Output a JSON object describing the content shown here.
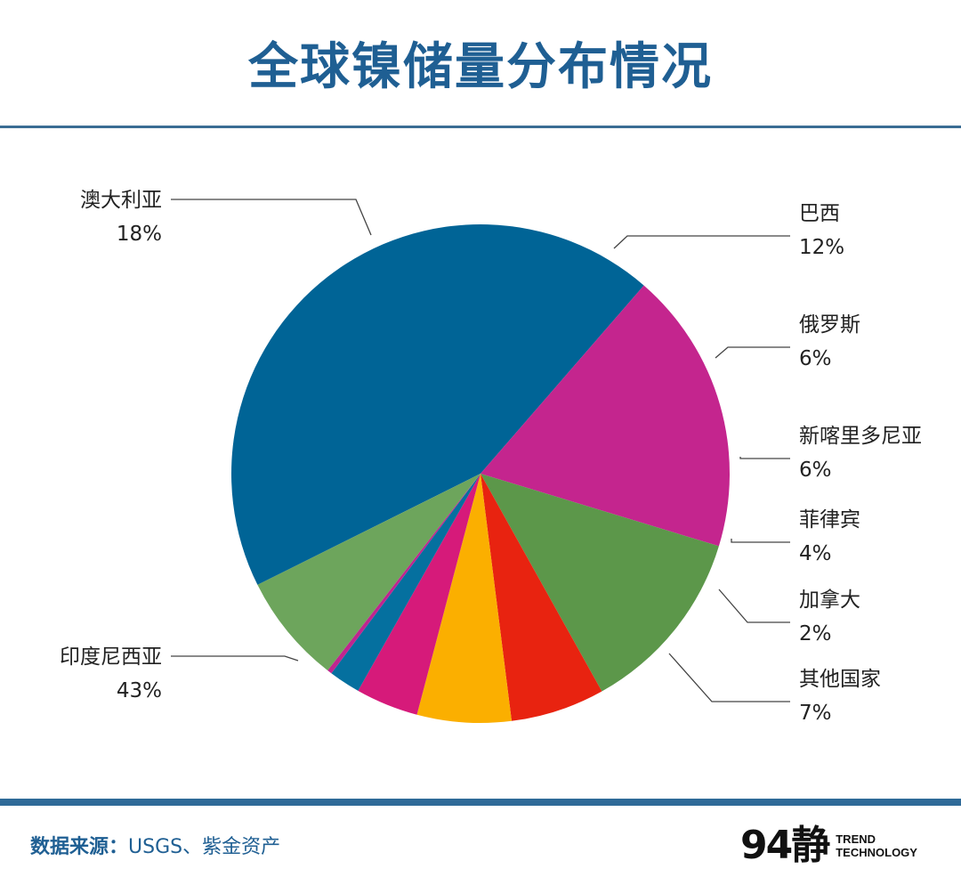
{
  "header": {
    "title": "全球镍储量分布情况"
  },
  "chart_data": {
    "type": "pie",
    "title": "全球镍储量分布情况",
    "slices": [
      {
        "label": "印度尼西亚",
        "pct_text": "43%",
        "value": 43,
        "color": "#006496"
      },
      {
        "label": "澳大利亚",
        "pct_text": "18%",
        "value": 18,
        "color": "#c4258e"
      },
      {
        "label": "巴西",
        "pct_text": "12%",
        "value": 12,
        "color": "#5c974a"
      },
      {
        "label": "俄罗斯",
        "pct_text": "6%",
        "value": 6,
        "color": "#e82310"
      },
      {
        "label": "新喀里多尼亚",
        "pct_text": "6%",
        "value": 6,
        "color": "#fbaf00"
      },
      {
        "label": "菲律宾",
        "pct_text": "4%",
        "value": 4,
        "color": "#d61a7a"
      },
      {
        "label": "加拿大",
        "pct_text": "2%",
        "value": 2,
        "color": "#05709f"
      },
      {
        "label": "",
        "pct_text": "",
        "value": 0.3,
        "color": "#c0258f"
      },
      {
        "label": "其他国家",
        "pct_text": "7%",
        "value": 7,
        "color": "#6da55c"
      }
    ]
  },
  "footer": {
    "source_label": "数据来源：",
    "source_value": "USGS、紫金资产",
    "logo_mark": "94静",
    "logo_line1": "TREND",
    "logo_line2": "TECHNOLOGY"
  }
}
